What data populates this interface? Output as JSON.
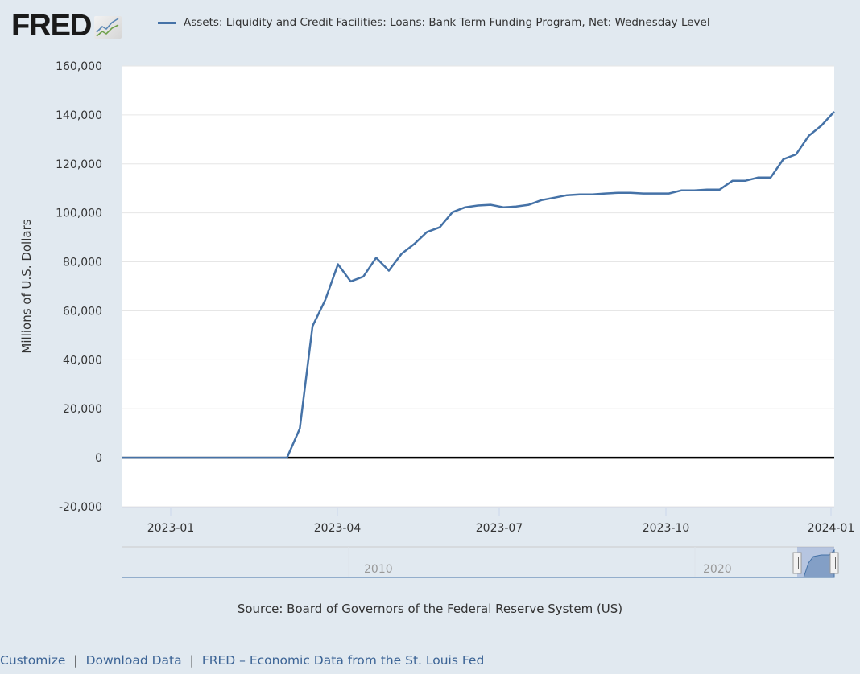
{
  "header": {
    "logo_text": "FRED",
    "logo_icon": "chart-line-icon",
    "legend_label": "Assets: Liquidity and Credit Facilities: Loans: Bank Term Funding Program, Net: Wednesday Level",
    "legend_color": "#4572a7"
  },
  "colors": {
    "background": "#e1e9f0",
    "plot_background": "#ffffff",
    "series": "#4572a7",
    "gridline": "#e6e6e6",
    "zero_line": "#000000",
    "link": "#3c6496"
  },
  "chart_data": {
    "type": "line",
    "title": "Assets: Liquidity and Credit Facilities: Loans: Bank Term Funding Program, Net: Wednesday Level",
    "xlabel": "",
    "ylabel": "Millions of U.S. Dollars",
    "ylim": [
      -20000,
      160000
    ],
    "yticks": [
      -20000,
      0,
      20000,
      40000,
      60000,
      80000,
      100000,
      120000,
      140000,
      160000
    ],
    "ytick_labels": [
      "-20,000",
      "0",
      "20,000",
      "40,000",
      "60,000",
      "80,000",
      "100,000",
      "120,000",
      "140,000",
      "160,000"
    ],
    "xtick_labels": [
      "2023-01",
      "2023-04",
      "2023-07",
      "2023-10",
      "2024-01"
    ],
    "grid": true,
    "legend_position": "top",
    "series": [
      {
        "name": "Assets: Liquidity and Credit Facilities: Loans: Bank Term Funding Program, Net: Wednesday Level",
        "x": [
          "2022-12-07",
          "2022-12-14",
          "2022-12-21",
          "2022-12-28",
          "2023-01-04",
          "2023-01-11",
          "2023-01-18",
          "2023-01-25",
          "2023-02-01",
          "2023-02-08",
          "2023-02-15",
          "2023-02-22",
          "2023-03-01",
          "2023-03-08",
          "2023-03-15",
          "2023-03-22",
          "2023-03-29",
          "2023-04-05",
          "2023-04-12",
          "2023-04-19",
          "2023-04-26",
          "2023-05-03",
          "2023-05-10",
          "2023-05-17",
          "2023-05-24",
          "2023-05-31",
          "2023-06-07",
          "2023-06-14",
          "2023-06-21",
          "2023-06-28",
          "2023-07-05",
          "2023-07-12",
          "2023-07-19",
          "2023-07-26",
          "2023-08-02",
          "2023-08-09",
          "2023-08-16",
          "2023-08-23",
          "2023-08-30",
          "2023-09-06",
          "2023-09-13",
          "2023-09-20",
          "2023-09-27",
          "2023-10-04",
          "2023-10-11",
          "2023-10-18",
          "2023-10-25",
          "2023-11-01",
          "2023-11-08",
          "2023-11-15",
          "2023-11-22",
          "2023-11-29",
          "2023-12-06",
          "2023-12-13",
          "2023-12-20",
          "2023-12-27",
          "2024-01-03"
        ],
        "values": [
          0,
          0,
          0,
          0,
          0,
          0,
          0,
          0,
          0,
          0,
          0,
          0,
          0,
          0,
          11900,
          53700,
          64400,
          79000,
          72000,
          74000,
          81700,
          76400,
          83300,
          87300,
          92200,
          94100,
          100300,
          102300,
          103000,
          103300,
          102300,
          102600,
          103300,
          105200,
          106200,
          107200,
          107500,
          107500,
          107900,
          108200,
          108200,
          107900,
          107900,
          107900,
          109200,
          109200,
          109500,
          109500,
          113100,
          113100,
          114400,
          114400,
          121900,
          123900,
          131500,
          135700,
          141300
        ]
      }
    ],
    "navigator": {
      "labels": [
        "2010",
        "2020"
      ],
      "selected_range": [
        "2022-12",
        "2024-01"
      ]
    }
  },
  "source": "Source: Board of Governors of the Federal Reserve System (US)",
  "footer": {
    "links": [
      "Customize",
      "Download Data",
      "FRED – Economic Data from the St. Louis Fed"
    ],
    "separator": "|"
  }
}
